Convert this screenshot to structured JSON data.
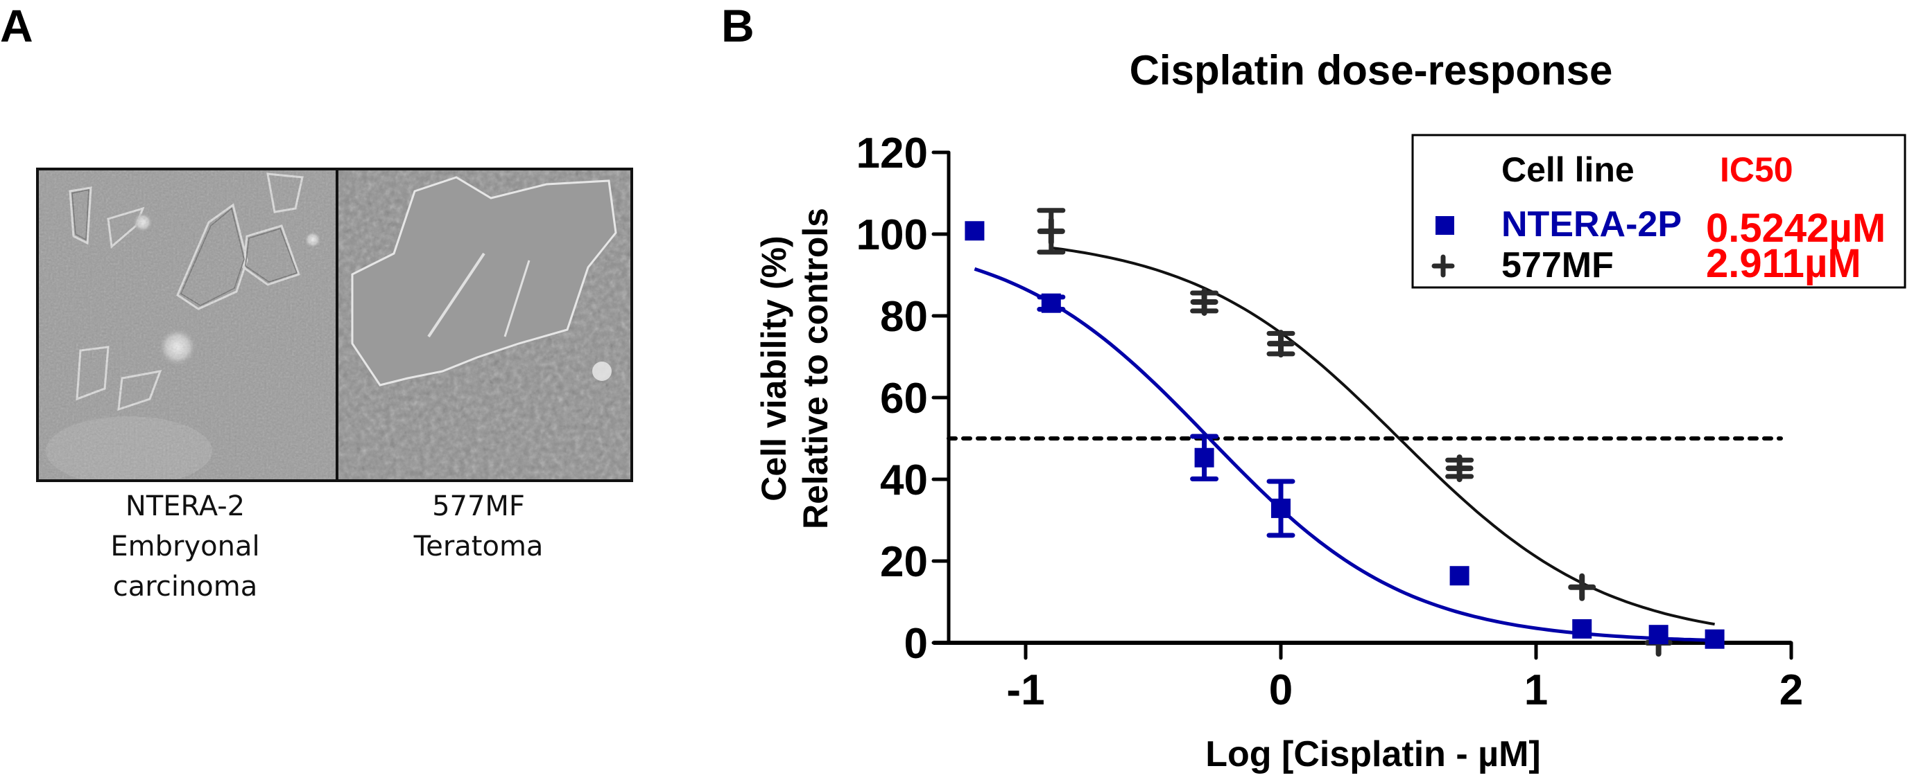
{
  "panels": {
    "a_label": "A",
    "b_label": "B"
  },
  "panel_a": {
    "images": [
      {
        "name": "NTERA-2 micrograph",
        "caption_lines": [
          "NTERA-2",
          "Embryonal",
          "carcinoma"
        ]
      },
      {
        "name": "577MF micrograph",
        "caption_lines": [
          "577MF",
          "Teratoma"
        ]
      }
    ]
  },
  "chart_data": {
    "type": "scatter",
    "title": "Cisplatin dose-response",
    "xlabel": "Log [Cisplatin - µM]",
    "ylabel_lines": [
      "Cell viability (%)",
      "Relative to controls"
    ],
    "xlim": [
      -1.3,
      2
    ],
    "ylim": [
      0,
      120
    ],
    "xticks": [
      -1,
      0,
      1,
      2
    ],
    "xtick_labels": [
      "-1",
      "0",
      "1",
      "2"
    ],
    "yticks": [
      0,
      20,
      40,
      60,
      80,
      100,
      120
    ],
    "ytick_labels": [
      "0",
      "20",
      "40",
      "60",
      "80",
      "100",
      "120"
    ],
    "grid": false,
    "reference_line": {
      "y": 50,
      "style": "dotted"
    },
    "legend": {
      "placement": "top-right",
      "header_left": "Cell line",
      "header_right": "IC50",
      "entries": [
        {
          "label": "NTERA-2P",
          "ic50": "0.5242µM"
        },
        {
          "label": "577MF",
          "ic50": "2.911µM"
        }
      ]
    },
    "series": [
      {
        "name": "NTERA-2P",
        "marker": "square",
        "color": "#0000a8",
        "x": [
          -1.2,
          -0.9,
          -0.3,
          0.0,
          0.7,
          1.18,
          1.48,
          1.7
        ],
        "y": [
          100.8,
          83.1,
          45.3,
          32.9,
          16.4,
          3.4,
          2.0,
          0.9
        ],
        "err": [
          0,
          1.5,
          5.2,
          6.6,
          0,
          0,
          0,
          0
        ],
        "fit": {
          "model": "4PL",
          "top": 100,
          "bottom": 0,
          "log_ic50": -0.28,
          "hill": 1.12,
          "x_range": [
            -1.2,
            1.7
          ]
        }
      },
      {
        "name": "577MF",
        "marker": "plus",
        "color": "#2b2b2b",
        "x": [
          -0.9,
          -0.3,
          0.0,
          0.7,
          1.18,
          1.48
        ],
        "y": [
          100.7,
          83.4,
          73.2,
          42.7,
          13.6,
          0.0
        ],
        "err": [
          5.1,
          2.2,
          2.5,
          2.0,
          0,
          0
        ],
        "fit": {
          "model": "4PL",
          "top": 100,
          "bottom": 0,
          "log_ic50": 0.464,
          "hill": 1.07,
          "x_range": [
            -0.9,
            1.7
          ]
        }
      }
    ]
  },
  "colors": {
    "ntera": "#0000a8",
    "mf577": "#2b2b2b",
    "ic50_text": "#ff0000",
    "axis": "#000000"
  }
}
